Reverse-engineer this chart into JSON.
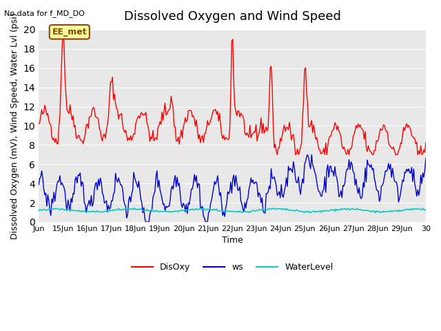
{
  "title": "Dissolved Oxygen and Wind Speed",
  "subtitle": "No data for f_MD_DO",
  "xlabel": "Time",
  "ylabel": "Dissolved Oxygen (mV), Wind Speed, Water Lvl (psi)",
  "ylim": [
    0,
    20
  ],
  "yticks": [
    0,
    2,
    4,
    6,
    8,
    10,
    12,
    14,
    16,
    18,
    20
  ],
  "xtick_labels": [
    "Jun",
    "15Jun",
    "16Jun",
    "17Jun",
    "18Jun",
    "19Jun",
    "20Jun",
    "21Jun",
    "22Jun",
    "23Jun",
    "24Jun",
    "25Jun",
    "26Jun",
    "27Jun",
    "28Jun",
    "29Jun",
    "30"
  ],
  "annotation_text": "EE_met",
  "disoxy_color": "#ff0000",
  "ws_color": "#0000cc",
  "waterlevel_color": "#00cccc",
  "bg_color": "#e8e8e8",
  "legend_labels": [
    "DisOxy",
    "ws",
    "WaterLevel"
  ],
  "title_fontsize": 13,
  "label_fontsize": 9
}
